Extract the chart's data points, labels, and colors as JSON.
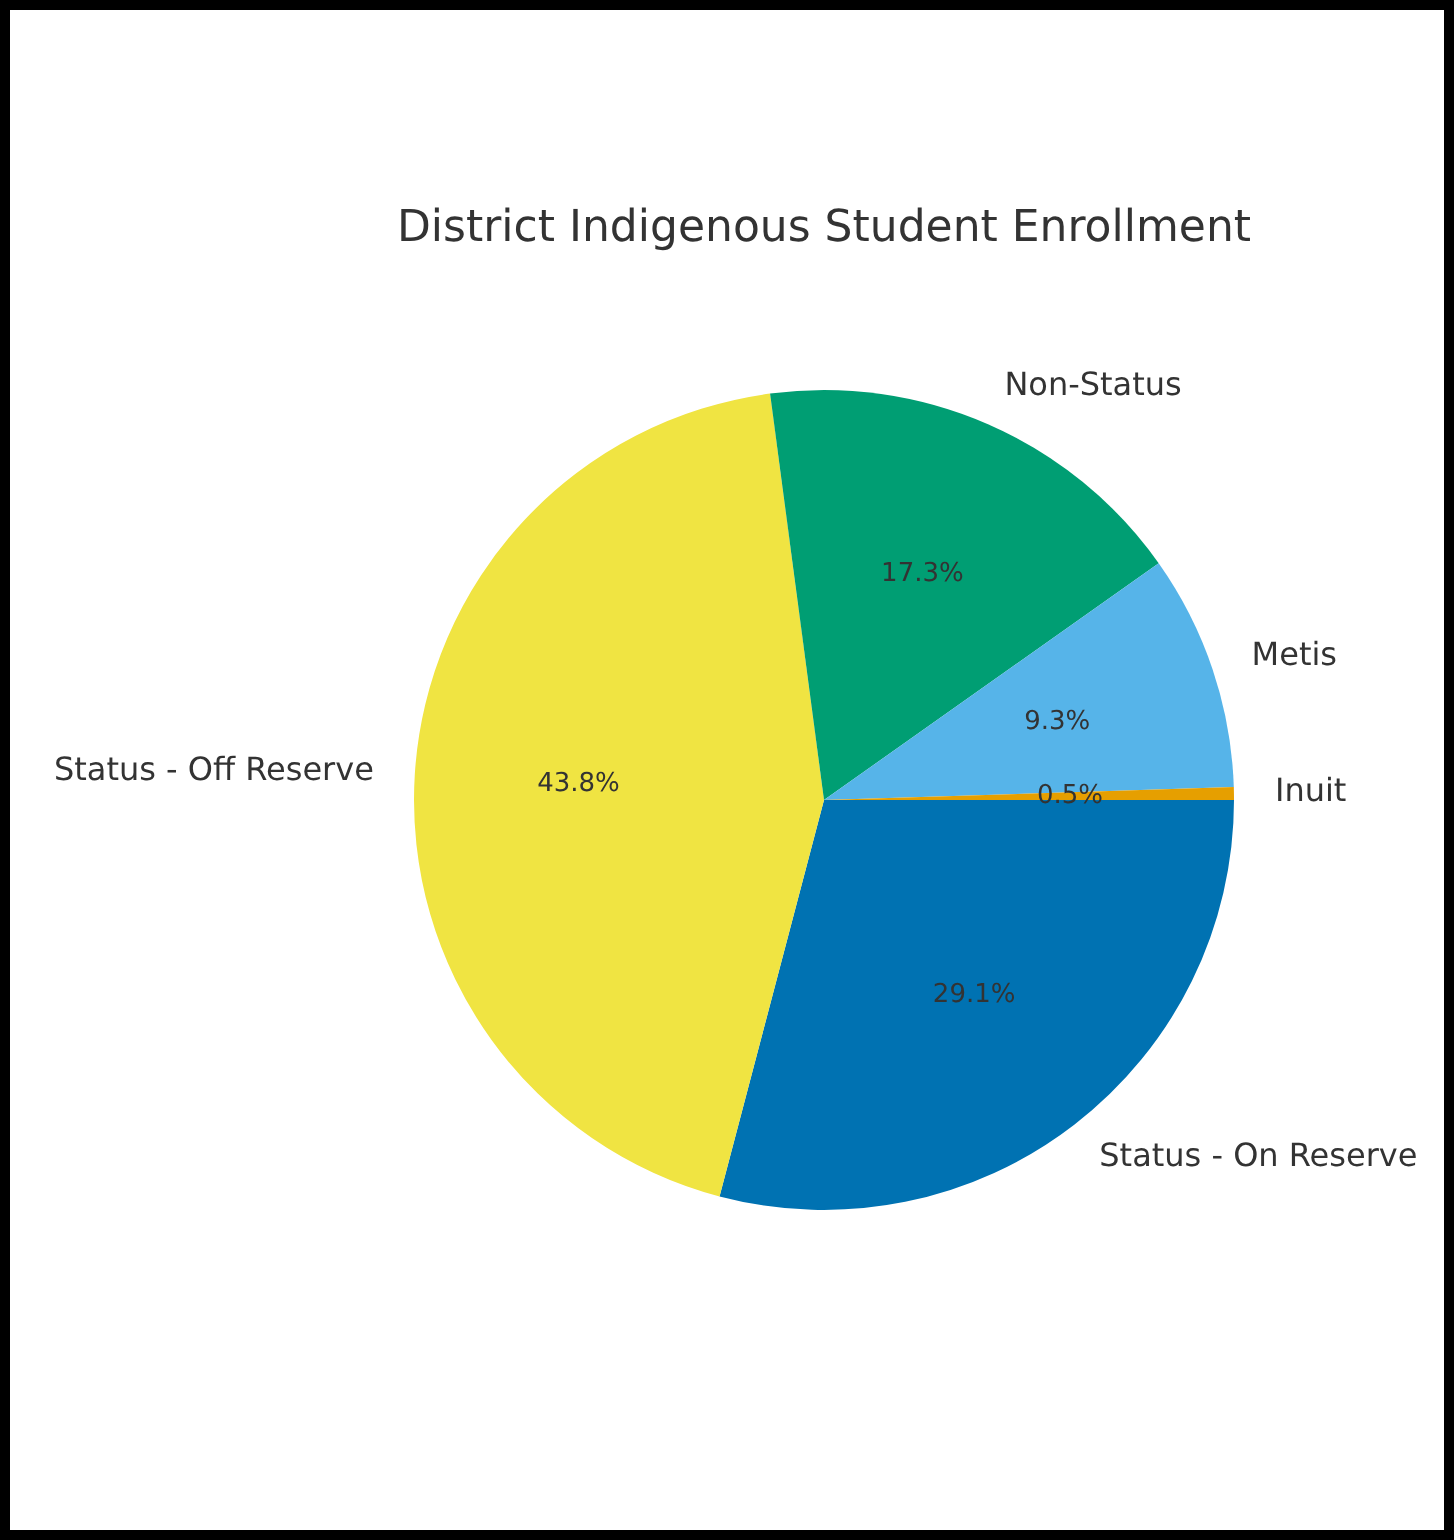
{
  "chart_data": {
    "type": "pie",
    "title": "District Indigenous Student Enrollment",
    "categories": [
      "Status - On Reserve",
      "Status - Off Reserve",
      "Non-Status",
      "Metis",
      "Inuit"
    ],
    "values": [
      29.1,
      43.8,
      17.3,
      9.3,
      0.5
    ],
    "value_labels": [
      "29.1%",
      "43.8%",
      "17.3%",
      "9.3%",
      "0.5%"
    ],
    "colors": [
      "#0072b2",
      "#f0e442",
      "#009e73",
      "#56b4e9",
      "#e69f00"
    ],
    "legend": false
  }
}
